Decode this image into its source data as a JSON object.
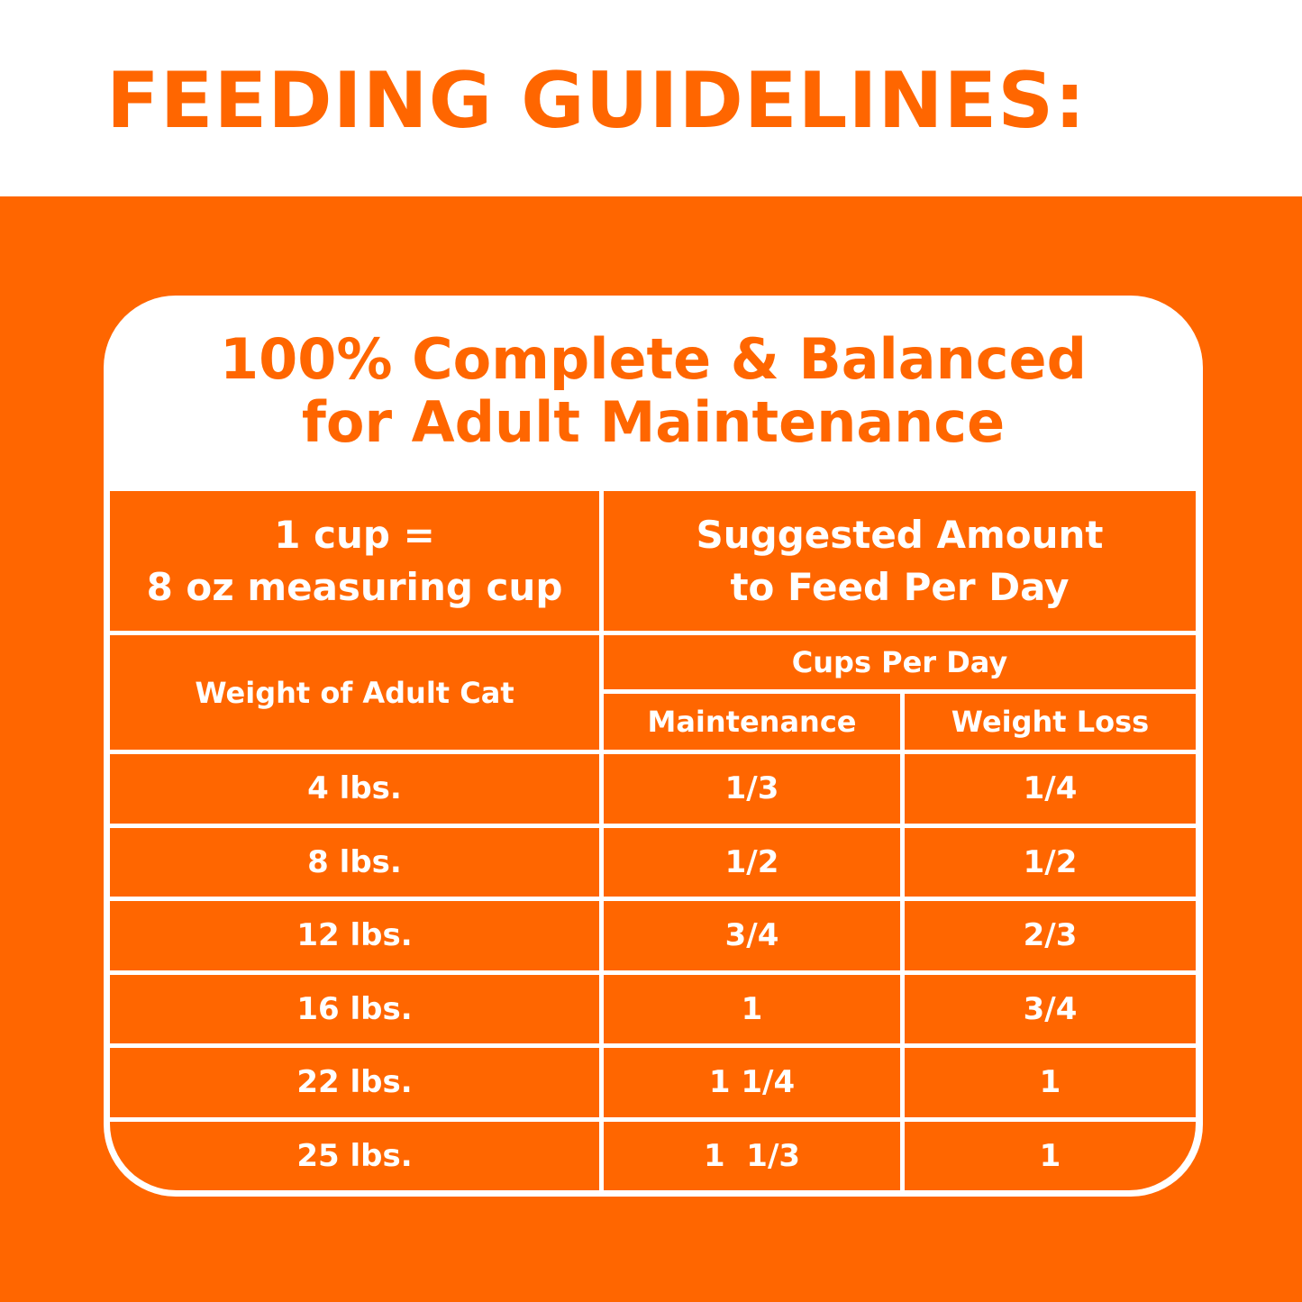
{
  "page_title": "FEEDING GUIDELINES:",
  "card": {
    "title_line1": "100% Complete & Balanced",
    "title_line2": "for Adult Maintenance"
  },
  "table": {
    "header_left_line1": "1 cup =",
    "header_left_line2": "8 oz measuring cup",
    "header_right_line1": "Suggested Amount",
    "header_right_line2": "to Feed Per Day",
    "weight_header": "Weight of Adult Cat",
    "cups_header": "Cups Per Day",
    "maintenance_header": "Maintenance",
    "weight_loss_header": "Weight Loss",
    "rows": [
      {
        "weight": "4 lbs.",
        "maintenance": "1/3",
        "weight_loss": "1/4"
      },
      {
        "weight": "8 lbs.",
        "maintenance": "1/2",
        "weight_loss": "1/2"
      },
      {
        "weight": "12 lbs.",
        "maintenance": "3/4",
        "weight_loss": "2/3"
      },
      {
        "weight": "16 lbs.",
        "maintenance": "1",
        "weight_loss": "3/4"
      },
      {
        "weight": "22 lbs.",
        "maintenance": "1 1/4",
        "weight_loss": "1"
      },
      {
        "weight": "25 lbs.",
        "maintenance": "1  1/3",
        "weight_loss": "1"
      }
    ]
  },
  "colors": {
    "brand_orange": "#ff6600",
    "white": "#ffffff"
  }
}
